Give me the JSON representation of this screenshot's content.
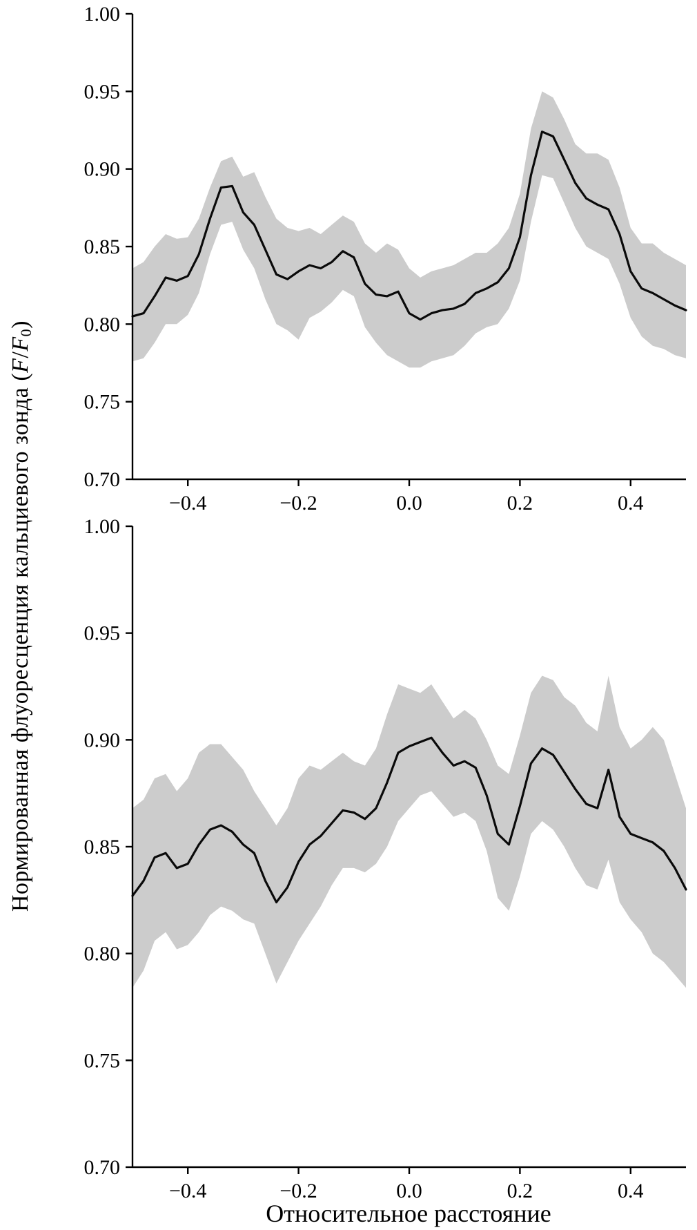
{
  "figure": {
    "xlabel": "Относительное расстояние",
    "ylabel": {
      "prefix": "Нормированная флуоресценция кальциевого зонда (",
      "f": "F",
      "slash": "/",
      "sub0": "0",
      "suffix": ")"
    }
  },
  "chart_data": [
    {
      "type": "line",
      "name": "top-panel",
      "title": "",
      "xlabel": "",
      "ylabel": "Нормированная флуоресценция кальциевого зонда (F/F0)",
      "xlim": [
        -0.5,
        0.5
      ],
      "ylim": [
        0.7,
        1.0
      ],
      "xticks": [
        -0.4,
        -0.2,
        0.0,
        0.2,
        0.4
      ],
      "xtick_labels": [
        "−0.4",
        "−0.2",
        "0.0",
        "0.2",
        "0.4"
      ],
      "yticks": [
        1.0,
        0.95,
        0.9,
        0.85,
        0.8,
        0.75,
        0.7
      ],
      "ytick_labels": [
        "1.00",
        "0.95",
        "0.90",
        "0.85",
        "0.80",
        "0.75",
        "0.70"
      ],
      "legend": "none",
      "grid": false,
      "line_color": "#0a0a0a",
      "band_color": "#cccccc",
      "x": [
        -0.5,
        -0.48,
        -0.46,
        -0.44,
        -0.42,
        -0.4,
        -0.38,
        -0.36,
        -0.34,
        -0.32,
        -0.3,
        -0.28,
        -0.26,
        -0.24,
        -0.22,
        -0.2,
        -0.18,
        -0.16,
        -0.14,
        -0.12,
        -0.1,
        -0.08,
        -0.06,
        -0.04,
        -0.02,
        0.0,
        0.02,
        0.04,
        0.06,
        0.08,
        0.1,
        0.12,
        0.14,
        0.16,
        0.18,
        0.2,
        0.22,
        0.24,
        0.26,
        0.28,
        0.3,
        0.32,
        0.34,
        0.36,
        0.38,
        0.4,
        0.42,
        0.44,
        0.46,
        0.48,
        0.5
      ],
      "mean": [
        0.805,
        0.807,
        0.818,
        0.83,
        0.828,
        0.831,
        0.845,
        0.868,
        0.888,
        0.889,
        0.872,
        0.864,
        0.848,
        0.832,
        0.829,
        0.834,
        0.838,
        0.836,
        0.84,
        0.847,
        0.843,
        0.826,
        0.819,
        0.818,
        0.821,
        0.807,
        0.803,
        0.807,
        0.809,
        0.81,
        0.813,
        0.82,
        0.823,
        0.827,
        0.836,
        0.856,
        0.896,
        0.924,
        0.921,
        0.906,
        0.891,
        0.881,
        0.877,
        0.874,
        0.858,
        0.834,
        0.823,
        0.82,
        0.816,
        0.812,
        0.809
      ],
      "upper": [
        0.836,
        0.84,
        0.85,
        0.858,
        0.855,
        0.856,
        0.868,
        0.888,
        0.905,
        0.908,
        0.895,
        0.898,
        0.882,
        0.868,
        0.862,
        0.86,
        0.862,
        0.858,
        0.864,
        0.87,
        0.866,
        0.852,
        0.846,
        0.852,
        0.848,
        0.836,
        0.83,
        0.834,
        0.836,
        0.838,
        0.842,
        0.846,
        0.846,
        0.852,
        0.862,
        0.884,
        0.926,
        0.95,
        0.946,
        0.932,
        0.916,
        0.91,
        0.91,
        0.906,
        0.888,
        0.862,
        0.852,
        0.852,
        0.846,
        0.842,
        0.838
      ],
      "lower": [
        0.776,
        0.778,
        0.788,
        0.8,
        0.8,
        0.806,
        0.82,
        0.845,
        0.864,
        0.866,
        0.848,
        0.836,
        0.816,
        0.8,
        0.796,
        0.79,
        0.804,
        0.808,
        0.814,
        0.822,
        0.818,
        0.798,
        0.788,
        0.78,
        0.776,
        0.772,
        0.772,
        0.776,
        0.778,
        0.78,
        0.786,
        0.794,
        0.798,
        0.8,
        0.81,
        0.828,
        0.866,
        0.896,
        0.894,
        0.878,
        0.862,
        0.85,
        0.846,
        0.842,
        0.826,
        0.804,
        0.792,
        0.786,
        0.784,
        0.78,
        0.778
      ]
    },
    {
      "type": "line",
      "name": "bottom-panel",
      "title": "",
      "xlabel": "Относительное расстояние",
      "ylabel": "Нормированная флуоресценция кальциевого зонда (F/F0)",
      "xlim": [
        -0.5,
        0.5
      ],
      "ylim": [
        0.7,
        1.0
      ],
      "xticks": [
        -0.4,
        -0.2,
        0.0,
        0.2,
        0.4
      ],
      "xtick_labels": [
        "−0.4",
        "−0.2",
        "0.0",
        "0.2",
        "0.4"
      ],
      "yticks": [
        1.0,
        0.95,
        0.9,
        0.85,
        0.8,
        0.75,
        0.7
      ],
      "ytick_labels": [
        "1.00",
        "0.95",
        "0.90",
        "0.85",
        "0.80",
        "0.75",
        "0.70"
      ],
      "legend": "none",
      "grid": false,
      "line_color": "#0a0a0a",
      "band_color": "#cccccc",
      "x": [
        -0.5,
        -0.48,
        -0.46,
        -0.44,
        -0.42,
        -0.4,
        -0.38,
        -0.36,
        -0.34,
        -0.32,
        -0.3,
        -0.28,
        -0.26,
        -0.24,
        -0.22,
        -0.2,
        -0.18,
        -0.16,
        -0.14,
        -0.12,
        -0.1,
        -0.08,
        -0.06,
        -0.04,
        -0.02,
        0.0,
        0.02,
        0.04,
        0.06,
        0.08,
        0.1,
        0.12,
        0.14,
        0.16,
        0.18,
        0.2,
        0.22,
        0.24,
        0.26,
        0.28,
        0.3,
        0.32,
        0.34,
        0.36,
        0.38,
        0.4,
        0.42,
        0.44,
        0.46,
        0.48,
        0.5
      ],
      "mean": [
        0.827,
        0.834,
        0.845,
        0.847,
        0.84,
        0.842,
        0.851,
        0.858,
        0.86,
        0.857,
        0.851,
        0.847,
        0.834,
        0.824,
        0.831,
        0.843,
        0.851,
        0.855,
        0.861,
        0.867,
        0.866,
        0.863,
        0.868,
        0.88,
        0.894,
        0.897,
        0.899,
        0.901,
        0.894,
        0.888,
        0.89,
        0.887,
        0.874,
        0.856,
        0.851,
        0.869,
        0.889,
        0.896,
        0.893,
        0.885,
        0.877,
        0.87,
        0.868,
        0.886,
        0.864,
        0.856,
        0.854,
        0.852,
        0.848,
        0.84,
        0.83
      ],
      "upper": [
        0.868,
        0.872,
        0.882,
        0.884,
        0.876,
        0.882,
        0.894,
        0.898,
        0.898,
        0.892,
        0.886,
        0.876,
        0.868,
        0.86,
        0.868,
        0.882,
        0.888,
        0.886,
        0.89,
        0.894,
        0.89,
        0.888,
        0.896,
        0.912,
        0.926,
        0.924,
        0.922,
        0.926,
        0.918,
        0.91,
        0.914,
        0.91,
        0.9,
        0.888,
        0.884,
        0.902,
        0.922,
        0.93,
        0.928,
        0.92,
        0.916,
        0.908,
        0.904,
        0.93,
        0.906,
        0.896,
        0.9,
        0.906,
        0.9,
        0.884,
        0.868
      ],
      "lower": [
        0.784,
        0.792,
        0.806,
        0.81,
        0.802,
        0.804,
        0.81,
        0.818,
        0.822,
        0.82,
        0.816,
        0.814,
        0.8,
        0.786,
        0.796,
        0.806,
        0.814,
        0.822,
        0.832,
        0.84,
        0.84,
        0.838,
        0.842,
        0.85,
        0.862,
        0.868,
        0.874,
        0.876,
        0.87,
        0.864,
        0.866,
        0.862,
        0.848,
        0.826,
        0.82,
        0.836,
        0.856,
        0.862,
        0.858,
        0.85,
        0.84,
        0.832,
        0.83,
        0.844,
        0.824,
        0.816,
        0.81,
        0.8,
        0.796,
        0.79,
        0.784
      ]
    }
  ]
}
